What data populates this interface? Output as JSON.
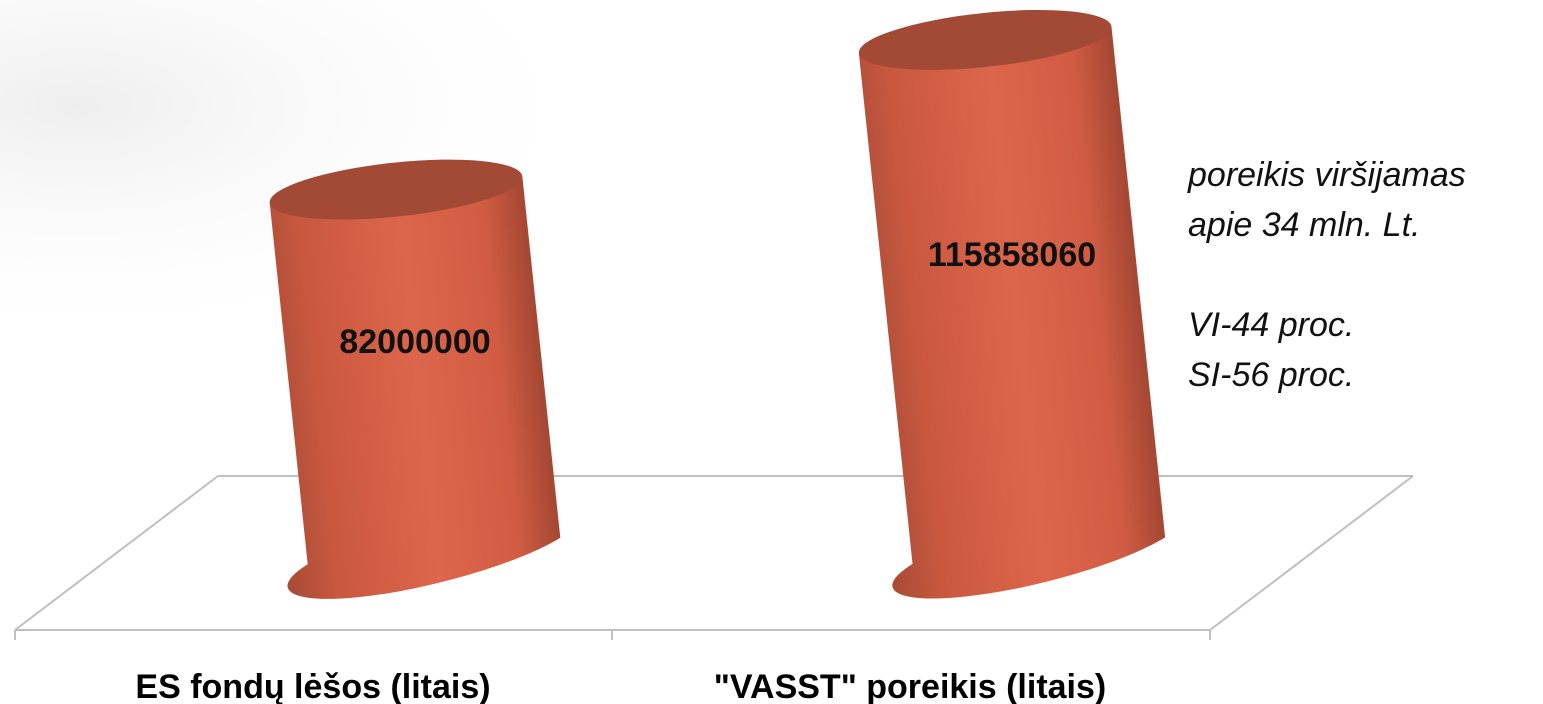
{
  "chart_data": {
    "type": "bar",
    "style": "3d-cylinder",
    "categories": [
      "ES fondų lėšos (litais)",
      "\"VASST\" poreikis (litais)"
    ],
    "values": [
      82000000,
      115858060
    ],
    "data_labels": [
      "82000000",
      "115858060"
    ],
    "title": "",
    "xlabel": "",
    "ylabel": "",
    "ylim": [
      0,
      125000000
    ],
    "grid": false,
    "legend": "none",
    "colors": {
      "bar_face": "#dc664b",
      "bar_top": "#a34a36",
      "bar_shade": "#a84b36",
      "floor_line": "#bfbfbf"
    }
  },
  "annotation": {
    "line1": "poreikis viršijamas",
    "line2": "apie 34 mln. Lt.",
    "line3": "VI-44 proc.",
    "line4": "SI-56 proc."
  }
}
